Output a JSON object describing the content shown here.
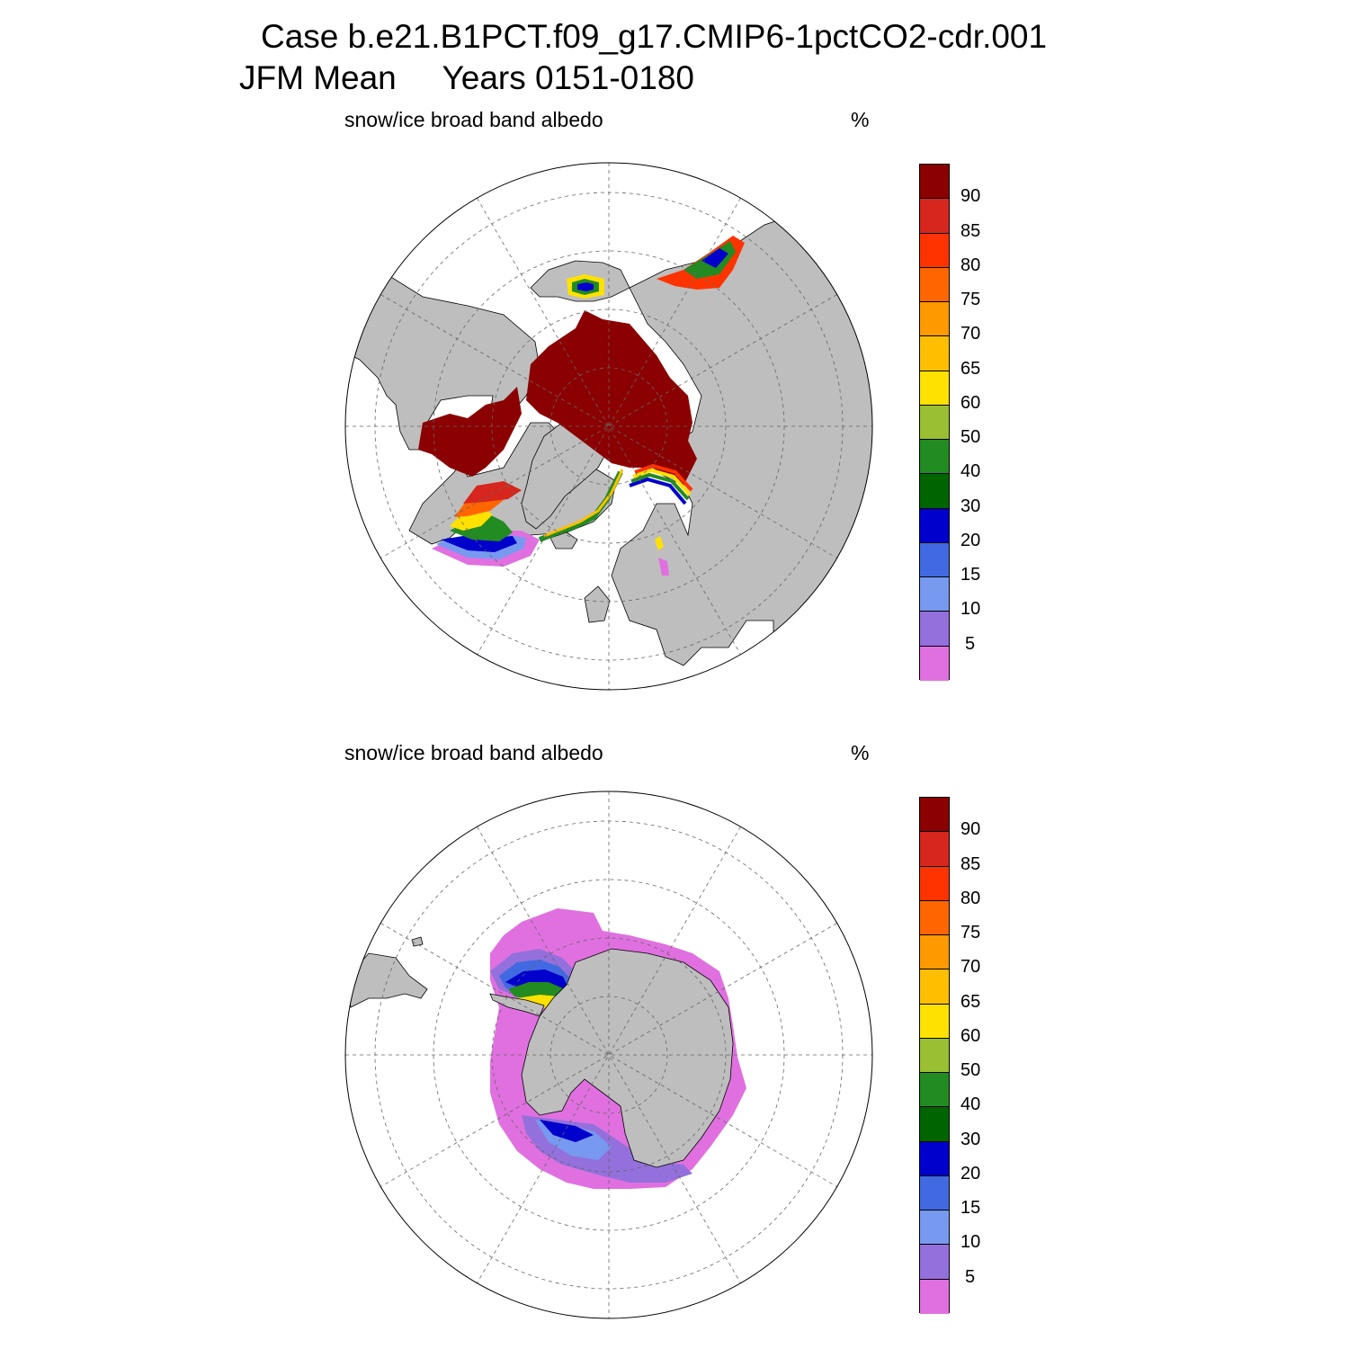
{
  "title": {
    "line1": "Case b.e21.B1PCT.f09_g17.CMIP6-1pctCO2-cdr.001",
    "line2": "JFM Mean     Years 0151-0180"
  },
  "panels": [
    {
      "id": "north",
      "label": "snow/ice broad band albedo",
      "units": "%",
      "hemisphere": "north"
    },
    {
      "id": "south",
      "label": "snow/ice broad band albedo",
      "units": "%",
      "hemisphere": "south"
    }
  ],
  "colorbar": {
    "labels": [
      "90",
      "85",
      "80",
      "75",
      "70",
      "65",
      "60",
      "50",
      "40",
      "30",
      "20",
      "15",
      "10",
      "5"
    ],
    "colors": [
      "#8b0000",
      "#d7261d",
      "#ff3300",
      "#ff6600",
      "#ff9900",
      "#ffbf00",
      "#ffe100",
      "#9abf33",
      "#228b22",
      "#006400",
      "#0000cc",
      "#4169e1",
      "#7799f0",
      "#9370db",
      "#e070e0"
    ]
  },
  "colors": {
    "land": "#bebebe",
    "ocean": "#ffffff",
    "grid": "#777777"
  }
}
